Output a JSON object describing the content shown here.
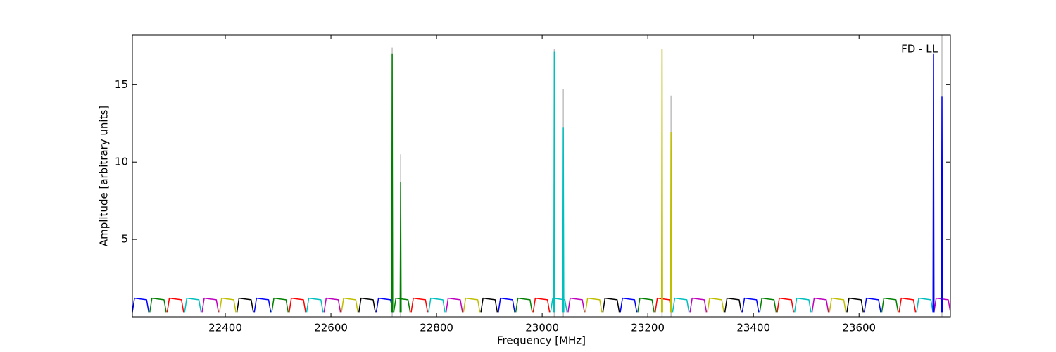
{
  "chart_data": {
    "type": "line",
    "xlabel": "Frequency [MHz]",
    "ylabel": "Amplitude [arbitrary units]",
    "annotation": "FD - LL",
    "xlim": [
      22224,
      23773
    ],
    "ylim": [
      0,
      18.2
    ],
    "xticks": [
      22400,
      22600,
      22800,
      23000,
      23200,
      23400,
      23600
    ],
    "yticks": [
      5,
      10,
      15
    ],
    "series": [
      {
        "color": "#bfbfbf",
        "x": [
          22716,
          22716,
          null,
          22732,
          22732,
          null,
          23023,
          23023,
          null,
          23040,
          23040,
          null,
          23227,
          23227,
          null,
          23244,
          23244,
          null,
          23757,
          23757
        ],
        "values": [
          0,
          17.4,
          null,
          0,
          10.5,
          null,
          0,
          17.3,
          null,
          0,
          14.7,
          null,
          0,
          17.3,
          null,
          0,
          14.3,
          null,
          0,
          18.2
        ]
      },
      {
        "color": "#0000ff",
        "x": [
          22224,
          22228,
          22251,
          22255,
          null,
          22455,
          22459,
          22482,
          22486,
          null,
          22686,
          22690,
          22713,
          22717,
          null,
          22917,
          22921,
          22944,
          22948,
          null,
          23148,
          23152,
          23175,
          23179,
          null,
          23379,
          23383,
          23406,
          23410,
          null,
          23610,
          23614,
          23637,
          23641
        ],
        "values": [
          0.3,
          1.2,
          1.1,
          0.3,
          null,
          0.3,
          1.2,
          1.1,
          0.3,
          null,
          0.3,
          1.2,
          1.1,
          0.3,
          null,
          0.3,
          1.2,
          1.1,
          0.3,
          null,
          0.3,
          1.2,
          1.1,
          0.3,
          null,
          0.3,
          1.2,
          1.1,
          0.3,
          null,
          0.3,
          1.2,
          1.1,
          0.3
        ]
      },
      {
        "color": "#008000",
        "x": [
          22257,
          22261,
          22284,
          22288,
          null,
          22488,
          22492,
          22515,
          22519,
          null,
          22719,
          22723,
          22746,
          22750,
          null,
          22950,
          22954,
          22977,
          22981,
          null,
          23181,
          23185,
          23208,
          23212,
          null,
          23412,
          23416,
          23439,
          23443,
          null,
          23643,
          23647,
          23670,
          23674
        ],
        "values": [
          0.3,
          1.2,
          1.1,
          0.3,
          null,
          0.3,
          1.2,
          1.1,
          0.3,
          null,
          0.3,
          1.2,
          1.1,
          0.3,
          null,
          0.3,
          1.2,
          1.1,
          0.3,
          null,
          0.3,
          1.2,
          1.1,
          0.3,
          null,
          0.3,
          1.2,
          1.1,
          0.3,
          null,
          0.3,
          1.2,
          1.1,
          0.3
        ]
      },
      {
        "color": "#ff0000",
        "x": [
          22290,
          22294,
          22317,
          22321,
          null,
          22521,
          22525,
          22548,
          22552,
          null,
          22752,
          22756,
          22779,
          22783,
          null,
          22983,
          22987,
          23010,
          23014,
          null,
          23214,
          23218,
          23241,
          23245,
          null,
          23445,
          23449,
          23472,
          23476,
          null,
          23676,
          23680,
          23703,
          23707
        ],
        "values": [
          0.3,
          1.2,
          1.1,
          0.3,
          null,
          0.3,
          1.2,
          1.1,
          0.3,
          null,
          0.3,
          1.2,
          1.1,
          0.3,
          null,
          0.3,
          1.2,
          1.1,
          0.3,
          null,
          0.3,
          1.2,
          1.1,
          0.3,
          null,
          0.3,
          1.2,
          1.1,
          0.3,
          null,
          0.3,
          1.2,
          1.1,
          0.3
        ]
      },
      {
        "color": "#00bfbf",
        "x": [
          22323,
          22327,
          22350,
          22354,
          null,
          22554,
          22558,
          22581,
          22585,
          null,
          22785,
          22789,
          22812,
          22816,
          null,
          23016,
          23020,
          23043,
          23047,
          null,
          23247,
          23251,
          23274,
          23278,
          null,
          23478,
          23482,
          23505,
          23509,
          null,
          23709,
          23713,
          23736,
          23740
        ],
        "values": [
          0.3,
          1.2,
          1.1,
          0.3,
          null,
          0.3,
          1.2,
          1.1,
          0.3,
          null,
          0.3,
          1.2,
          1.1,
          0.3,
          null,
          0.3,
          1.2,
          1.1,
          0.3,
          null,
          0.3,
          1.2,
          1.1,
          0.3,
          null,
          0.3,
          1.2,
          1.1,
          0.3,
          null,
          0.3,
          1.2,
          1.1,
          0.3
        ]
      },
      {
        "color": "#bf00bf",
        "x": [
          22356,
          22360,
          22383,
          22387,
          null,
          22587,
          22591,
          22614,
          22618,
          null,
          22818,
          22822,
          22845,
          22849,
          null,
          23049,
          23053,
          23076,
          23080,
          null,
          23280,
          23284,
          23307,
          23311,
          null,
          23511,
          23515,
          23538,
          23542,
          null,
          23742,
          23746,
          23769,
          23773
        ],
        "values": [
          0.3,
          1.2,
          1.1,
          0.3,
          null,
          0.3,
          1.2,
          1.1,
          0.3,
          null,
          0.3,
          1.2,
          1.1,
          0.3,
          null,
          0.3,
          1.2,
          1.1,
          0.3,
          null,
          0.3,
          1.2,
          1.1,
          0.3,
          null,
          0.3,
          1.2,
          1.1,
          0.3,
          null,
          0.3,
          1.2,
          1.1,
          0.3
        ]
      },
      {
        "color": "#bfbf00",
        "x": [
          22389,
          22393,
          22416,
          22420,
          null,
          22620,
          22624,
          22647,
          22651,
          null,
          22851,
          22855,
          22878,
          22882,
          null,
          23082,
          23086,
          23109,
          23113,
          null,
          23313,
          23317,
          23340,
          23344,
          null,
          23544,
          23548,
          23571,
          23575
        ],
        "values": [
          0.3,
          1.2,
          1.1,
          0.3,
          null,
          0.3,
          1.2,
          1.1,
          0.3,
          null,
          0.3,
          1.2,
          1.1,
          0.3,
          null,
          0.3,
          1.2,
          1.1,
          0.3,
          null,
          0.3,
          1.2,
          1.1,
          0.3,
          null,
          0.3,
          1.2,
          1.1,
          0.3
        ]
      },
      {
        "color": "#000000",
        "x": [
          22422,
          22426,
          22449,
          22453,
          null,
          22653,
          22657,
          22680,
          22684,
          null,
          22884,
          22888,
          22911,
          22915,
          null,
          23115,
          23119,
          23142,
          23146,
          null,
          23346,
          23350,
          23373,
          23377,
          null,
          23577,
          23581,
          23604,
          23608
        ],
        "values": [
          0.3,
          1.2,
          1.1,
          0.3,
          null,
          0.3,
          1.2,
          1.1,
          0.3,
          null,
          0.3,
          1.2,
          1.1,
          0.3,
          null,
          0.3,
          1.2,
          1.1,
          0.3,
          null,
          0.3,
          1.2,
          1.1,
          0.3,
          null,
          0.3,
          1.2,
          1.1,
          0.3
        ]
      },
      {
        "color": "#008000",
        "x": [
          22715,
          22716,
          22717,
          null,
          22731,
          22732,
          22733
        ],
        "values": [
          0.3,
          17.0,
          0.3,
          null,
          0.3,
          8.7,
          0.3
        ]
      },
      {
        "color": "#00bfbf",
        "x": [
          23022,
          23023,
          23024,
          null,
          23039,
          23040,
          23041
        ],
        "values": [
          0.3,
          17.1,
          0.3,
          null,
          0.3,
          12.2,
          0.3
        ]
      },
      {
        "color": "#bfbf00",
        "x": [
          23226,
          23227,
          23228,
          null,
          23243,
          23244,
          23245
        ],
        "values": [
          0.3,
          17.3,
          0.3,
          null,
          0.3,
          11.9,
          0.3
        ]
      },
      {
        "color": "#0000ff",
        "x": [
          23740,
          23741,
          23742,
          null,
          23756,
          23757,
          23758
        ],
        "values": [
          0.3,
          17.0,
          0.3,
          null,
          0.3,
          14.2,
          0.3
        ]
      }
    ]
  }
}
